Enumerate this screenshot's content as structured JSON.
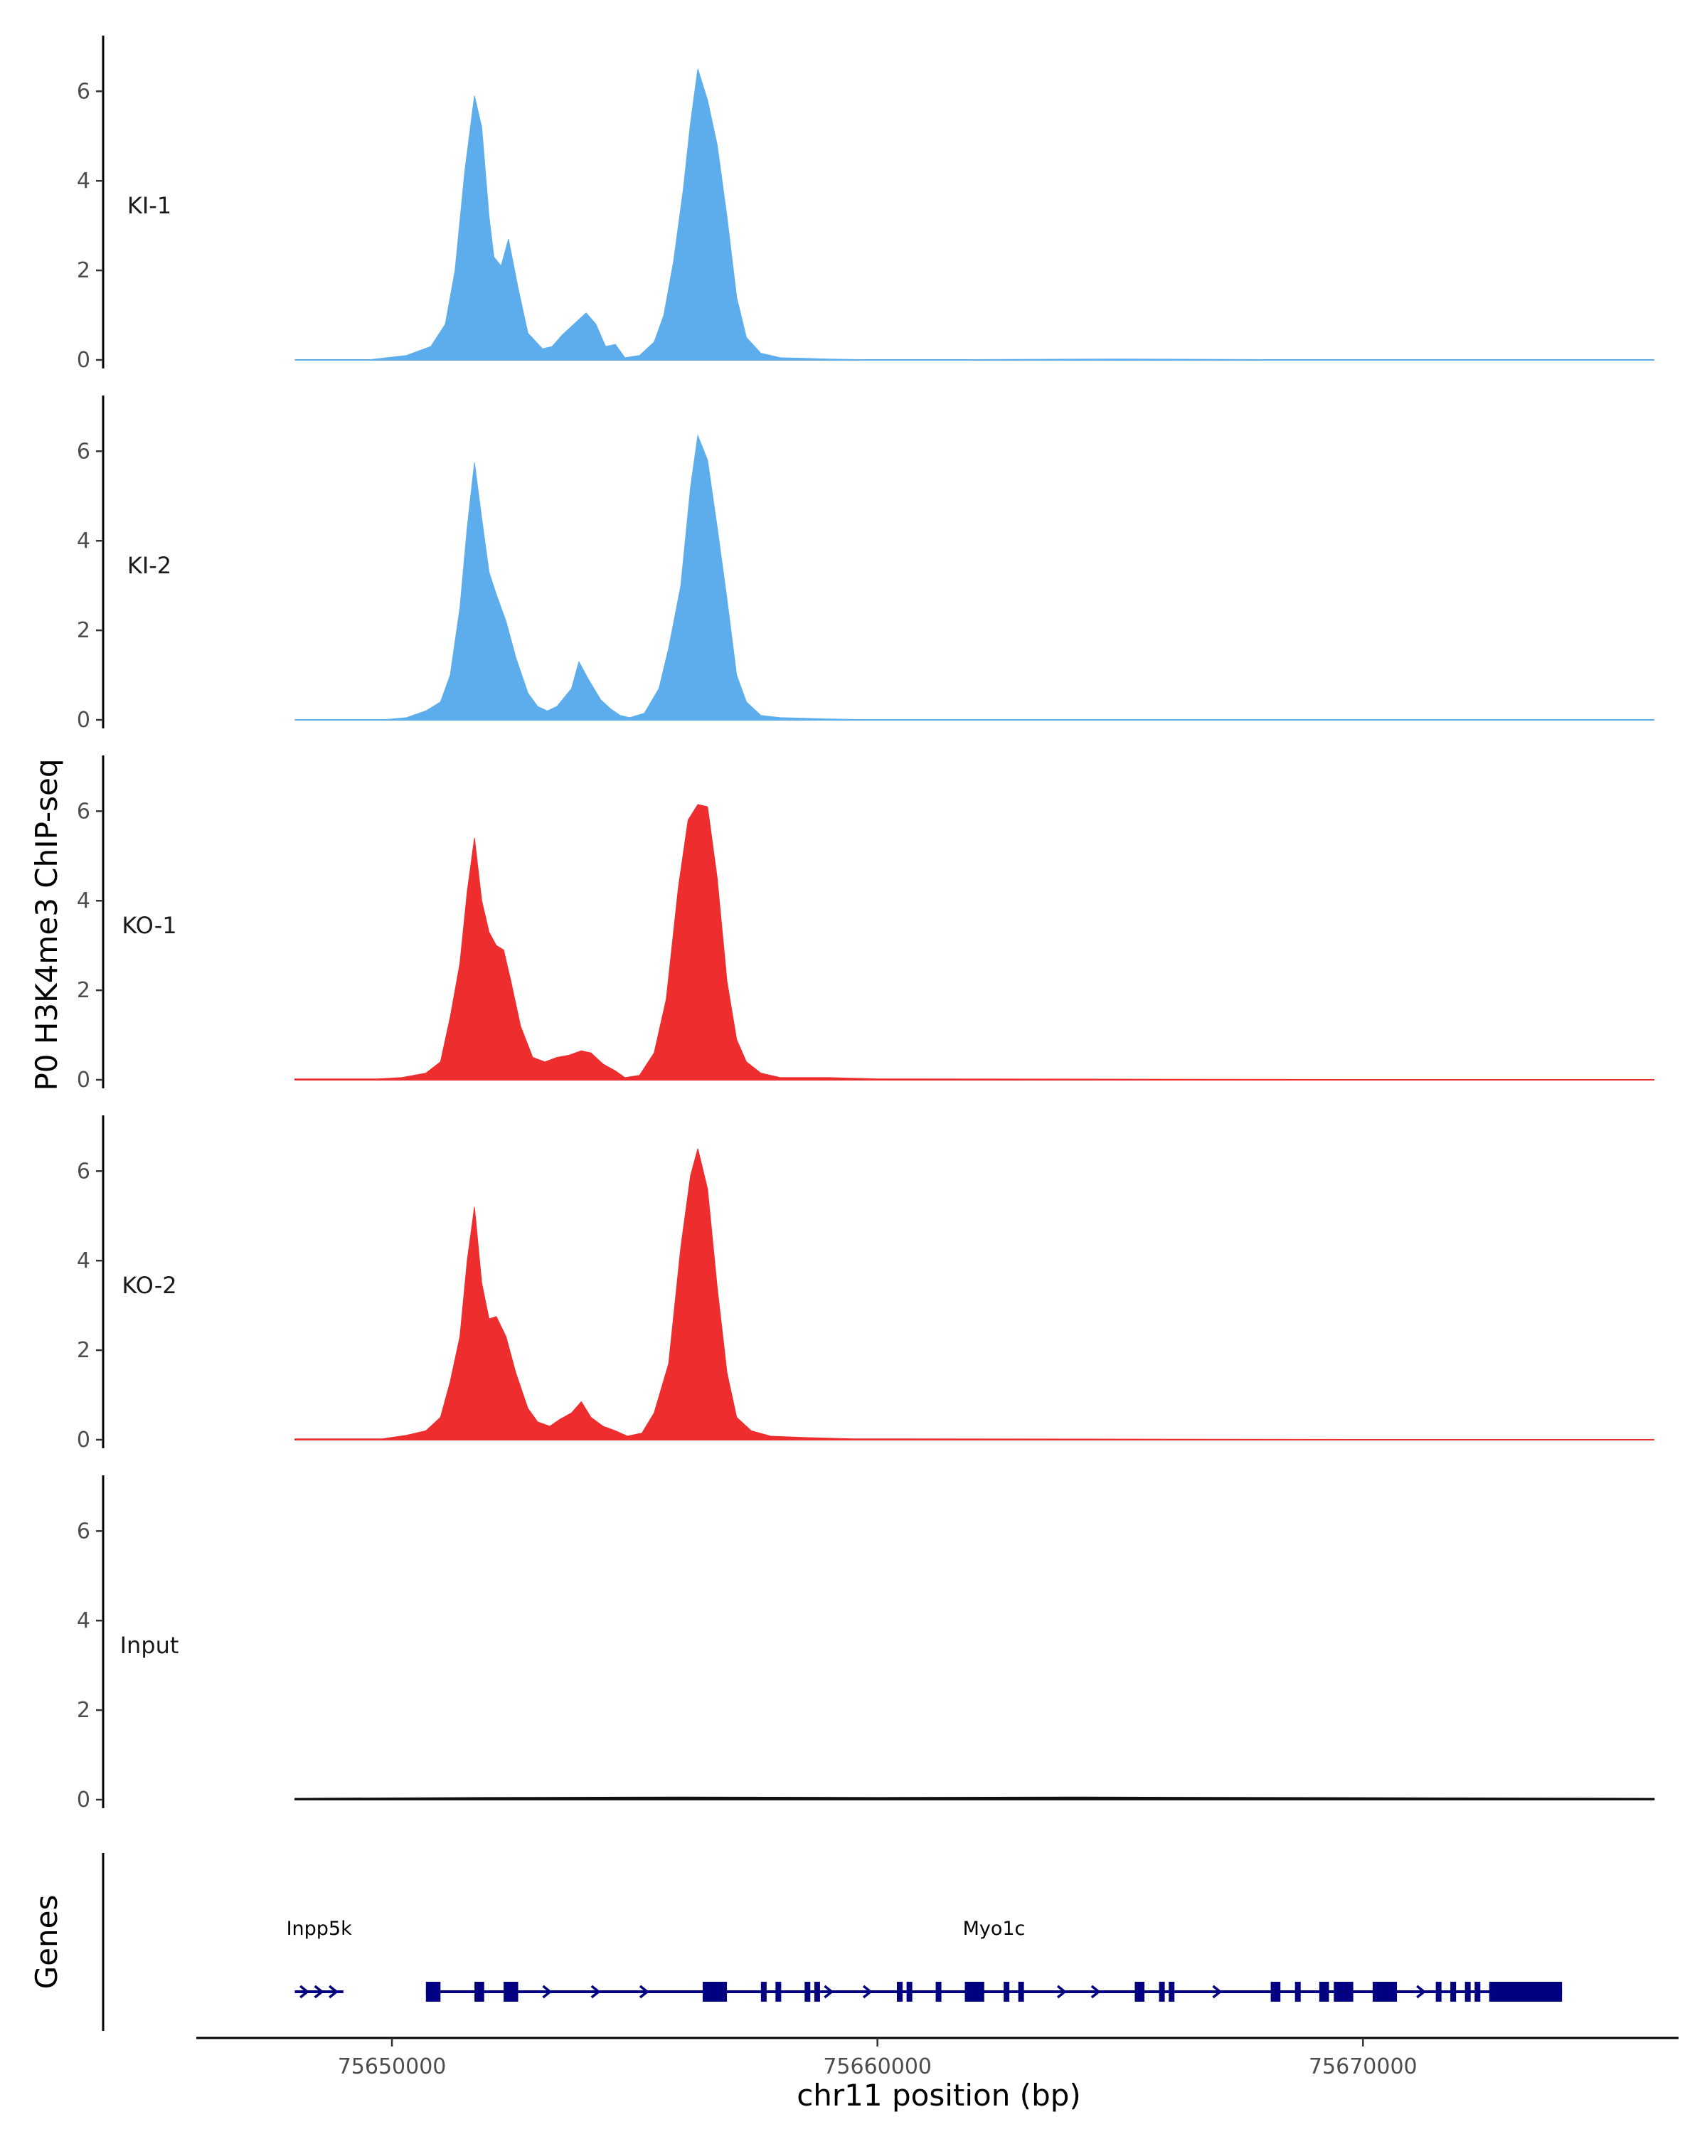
{
  "chart_data": {
    "type": "area",
    "ylabel": "P0 H3K4me3 ChIP-seq",
    "xlabel": "chr11 position (bp)",
    "x_range": [
      75646000,
      75676500
    ],
    "x_ticks": [
      75650000,
      75660000,
      75670000
    ],
    "x_tick_labels": [
      "75650000",
      "75660000",
      "75670000"
    ],
    "y_range": [
      0,
      6.8
    ],
    "y_ticks": [
      0,
      2,
      4,
      6
    ],
    "y_tick_labels": [
      "0",
      "2",
      "4",
      "6"
    ],
    "grid": false,
    "legend": "none",
    "tracks": [
      {
        "name": "KI-1",
        "color": "#5DADEC",
        "points": [
          [
            75648000,
            0.0
          ],
          [
            75649500,
            0.0
          ],
          [
            75650300,
            0.1
          ],
          [
            75650800,
            0.3
          ],
          [
            75651100,
            0.8
          ],
          [
            75651300,
            2.0
          ],
          [
            75651500,
            4.2
          ],
          [
            75651700,
            5.9
          ],
          [
            75651850,
            5.2
          ],
          [
            75652000,
            3.2
          ],
          [
            75652100,
            2.3
          ],
          [
            75652250,
            2.1
          ],
          [
            75652400,
            2.7
          ],
          [
            75652600,
            1.6
          ],
          [
            75652800,
            0.6
          ],
          [
            75653100,
            0.25
          ],
          [
            75653300,
            0.3
          ],
          [
            75653500,
            0.55
          ],
          [
            75653800,
            0.85
          ],
          [
            75654000,
            1.05
          ],
          [
            75654200,
            0.8
          ],
          [
            75654400,
            0.3
          ],
          [
            75654600,
            0.35
          ],
          [
            75654800,
            0.05
          ],
          [
            75655100,
            0.1
          ],
          [
            75655400,
            0.4
          ],
          [
            75655600,
            1.0
          ],
          [
            75655800,
            2.2
          ],
          [
            75656000,
            3.8
          ],
          [
            75656150,
            5.3
          ],
          [
            75656300,
            6.5
          ],
          [
            75656500,
            5.8
          ],
          [
            75656700,
            4.8
          ],
          [
            75656900,
            3.2
          ],
          [
            75657100,
            1.4
          ],
          [
            75657300,
            0.5
          ],
          [
            75657600,
            0.15
          ],
          [
            75658000,
            0.05
          ],
          [
            75659000,
            0.02
          ],
          [
            75660000,
            0.0
          ],
          [
            75665000,
            0.02
          ],
          [
            75670000,
            0.0
          ],
          [
            75676000,
            0.0
          ]
        ]
      },
      {
        "name": "KI-2",
        "color": "#5DADEC",
        "points": [
          [
            75648000,
            0.0
          ],
          [
            75649800,
            0.0
          ],
          [
            75650300,
            0.05
          ],
          [
            75650700,
            0.2
          ],
          [
            75651000,
            0.4
          ],
          [
            75651200,
            1.0
          ],
          [
            75651400,
            2.5
          ],
          [
            75651550,
            4.3
          ],
          [
            75651700,
            5.75
          ],
          [
            75651850,
            4.5
          ],
          [
            75652000,
            3.3
          ],
          [
            75652150,
            2.8
          ],
          [
            75652350,
            2.2
          ],
          [
            75652550,
            1.4
          ],
          [
            75652800,
            0.6
          ],
          [
            75653000,
            0.3
          ],
          [
            75653200,
            0.2
          ],
          [
            75653400,
            0.3
          ],
          [
            75653700,
            0.7
          ],
          [
            75653850,
            1.3
          ],
          [
            75654050,
            0.9
          ],
          [
            75654300,
            0.45
          ],
          [
            75654500,
            0.25
          ],
          [
            75654700,
            0.1
          ],
          [
            75654900,
            0.05
          ],
          [
            75655200,
            0.15
          ],
          [
            75655500,
            0.7
          ],
          [
            75655700,
            1.6
          ],
          [
            75655950,
            3.0
          ],
          [
            75656150,
            5.2
          ],
          [
            75656300,
            6.35
          ],
          [
            75656500,
            5.8
          ],
          [
            75656700,
            4.3
          ],
          [
            75656900,
            2.7
          ],
          [
            75657100,
            1.0
          ],
          [
            75657300,
            0.4
          ],
          [
            75657600,
            0.1
          ],
          [
            75658000,
            0.05
          ],
          [
            75659000,
            0.02
          ],
          [
            75660000,
            0.0
          ],
          [
            75676000,
            0.0
          ]
        ]
      },
      {
        "name": "KO-1",
        "color": "#EE2E2E",
        "points": [
          [
            75648000,
            0.02
          ],
          [
            75649700,
            0.02
          ],
          [
            75650200,
            0.05
          ],
          [
            75650700,
            0.15
          ],
          [
            75651000,
            0.4
          ],
          [
            75651200,
            1.4
          ],
          [
            75651400,
            2.6
          ],
          [
            75651550,
            4.2
          ],
          [
            75651700,
            5.4
          ],
          [
            75651850,
            4.0
          ],
          [
            75652000,
            3.3
          ],
          [
            75652150,
            3.0
          ],
          [
            75652300,
            2.9
          ],
          [
            75652450,
            2.2
          ],
          [
            75652650,
            1.2
          ],
          [
            75652900,
            0.5
          ],
          [
            75653150,
            0.4
          ],
          [
            75653400,
            0.5
          ],
          [
            75653650,
            0.55
          ],
          [
            75653900,
            0.65
          ],
          [
            75654100,
            0.6
          ],
          [
            75654350,
            0.35
          ],
          [
            75654600,
            0.2
          ],
          [
            75654800,
            0.05
          ],
          [
            75655100,
            0.1
          ],
          [
            75655400,
            0.6
          ],
          [
            75655650,
            1.8
          ],
          [
            75655900,
            4.3
          ],
          [
            75656100,
            5.8
          ],
          [
            75656300,
            6.15
          ],
          [
            75656500,
            6.1
          ],
          [
            75656700,
            4.5
          ],
          [
            75656900,
            2.2
          ],
          [
            75657100,
            0.9
          ],
          [
            75657300,
            0.4
          ],
          [
            75657600,
            0.15
          ],
          [
            75658000,
            0.05
          ],
          [
            75659000,
            0.05
          ],
          [
            75660000,
            0.02
          ],
          [
            75676000,
            0.0
          ]
        ]
      },
      {
        "name": "KO-2",
        "color": "#EE2E2E",
        "points": [
          [
            75648000,
            0.02
          ],
          [
            75649800,
            0.02
          ],
          [
            75650300,
            0.1
          ],
          [
            75650700,
            0.2
          ],
          [
            75651000,
            0.5
          ],
          [
            75651200,
            1.3
          ],
          [
            75651400,
            2.3
          ],
          [
            75651550,
            4.0
          ],
          [
            75651700,
            5.2
          ],
          [
            75651850,
            3.5
          ],
          [
            75652000,
            2.7
          ],
          [
            75652150,
            2.75
          ],
          [
            75652350,
            2.3
          ],
          [
            75652550,
            1.5
          ],
          [
            75652800,
            0.7
          ],
          [
            75653000,
            0.4
          ],
          [
            75653250,
            0.3
          ],
          [
            75653450,
            0.45
          ],
          [
            75653700,
            0.6
          ],
          [
            75653900,
            0.85
          ],
          [
            75654100,
            0.5
          ],
          [
            75654350,
            0.3
          ],
          [
            75654600,
            0.2
          ],
          [
            75654850,
            0.08
          ],
          [
            75655150,
            0.15
          ],
          [
            75655400,
            0.6
          ],
          [
            75655700,
            1.7
          ],
          [
            75655950,
            4.3
          ],
          [
            75656150,
            5.9
          ],
          [
            75656300,
            6.5
          ],
          [
            75656500,
            5.6
          ],
          [
            75656700,
            3.4
          ],
          [
            75656900,
            1.5
          ],
          [
            75657100,
            0.5
          ],
          [
            75657400,
            0.2
          ],
          [
            75657800,
            0.08
          ],
          [
            75658500,
            0.05
          ],
          [
            75659500,
            0.02
          ],
          [
            75660000,
            0.02
          ],
          [
            75676000,
            0.0
          ]
        ]
      },
      {
        "name": "Input",
        "color": "#111111",
        "points": [
          [
            75648000,
            0.03
          ],
          [
            75652000,
            0.05
          ],
          [
            75656000,
            0.06
          ],
          [
            75660000,
            0.05
          ],
          [
            75664000,
            0.06
          ],
          [
            75668000,
            0.05
          ],
          [
            75672000,
            0.04
          ],
          [
            75676000,
            0.03
          ]
        ]
      }
    ],
    "genes_track": {
      "label": "Genes",
      "color": "#000080",
      "genes": [
        {
          "name": "Inpp5k",
          "start": 75648000,
          "end": 75649000
        },
        {
          "name": "Myo1c",
          "start": 75650700,
          "end": 75674100
        }
      ],
      "myo1c_exons": [
        [
          75650700,
          75651000
        ],
        [
          75651700,
          75651900
        ],
        [
          75652300,
          75652600
        ],
        [
          75656400,
          75656900
        ],
        [
          75657600,
          75657700
        ],
        [
          75657900,
          75658000
        ],
        [
          75658500,
          75658600
        ],
        [
          75658700,
          75658800
        ],
        [
          75660400,
          75660500
        ],
        [
          75660600,
          75660700
        ],
        [
          75661200,
          75661300
        ],
        [
          75661800,
          75662200
        ],
        [
          75662600,
          75662700
        ],
        [
          75662900,
          75663000
        ],
        [
          75665300,
          75665500
        ],
        [
          75665800,
          75665900
        ],
        [
          75666000,
          75666100
        ],
        [
          75668100,
          75668300
        ],
        [
          75668600,
          75668700
        ],
        [
          75669100,
          75669300
        ],
        [
          75669400,
          75669800
        ],
        [
          75670200,
          75670700
        ],
        [
          75671500,
          75671600
        ],
        [
          75671800,
          75671900
        ],
        [
          75672100,
          75672200
        ],
        [
          75672300,
          75672400
        ],
        [
          75672600,
          75674100
        ]
      ],
      "arrow_positions": [
        75648200,
        75648500,
        75648800,
        75653200,
        75654200,
        75655200,
        75659000,
        75659800,
        75663800,
        75664500,
        75667000,
        75671200
      ]
    }
  }
}
